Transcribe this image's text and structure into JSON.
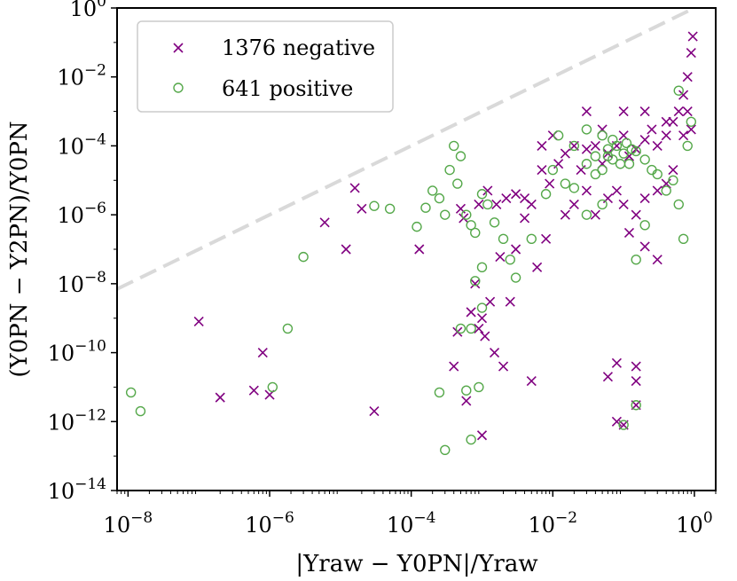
{
  "chart_data": {
    "type": "scatter",
    "x_scale": "log",
    "y_scale": "log",
    "xlim": [
      7e-09,
      2
    ],
    "ylim": [
      1e-14,
      1
    ],
    "grid": false,
    "legend_position": "top-left",
    "xlabel": "|Υraw − Υ0PN|/Υraw",
    "ylabel": "(Υ0PN − Υ2PN)/Υ0PN",
    "x_ticks": [
      {
        "value": 1e-08,
        "base": "10",
        "exp": "−8"
      },
      {
        "value": 1e-06,
        "base": "10",
        "exp": "−6"
      },
      {
        "value": 0.0001,
        "base": "10",
        "exp": "−4"
      },
      {
        "value": 0.01,
        "base": "10",
        "exp": "−2"
      },
      {
        "value": 1,
        "base": "10",
        "exp": "0"
      }
    ],
    "y_ticks": [
      {
        "value": 1e-14,
        "base": "10",
        "exp": "−14"
      },
      {
        "value": 1e-12,
        "base": "10",
        "exp": "−12"
      },
      {
        "value": 1e-10,
        "base": "10",
        "exp": "−10"
      },
      {
        "value": 1e-08,
        "base": "10",
        "exp": "−8"
      },
      {
        "value": 1e-06,
        "base": "10",
        "exp": "−6"
      },
      {
        "value": 0.0001,
        "base": "10",
        "exp": "−4"
      },
      {
        "value": 0.01,
        "base": "10",
        "exp": "−2"
      },
      {
        "value": 1,
        "base": "10",
        "exp": "0"
      }
    ],
    "reference_line": {
      "style": "dashed",
      "color": "#d9d9d9",
      "x": [
        7e-09,
        2
      ],
      "y": [
        7e-09,
        2
      ]
    },
    "series": [
      {
        "name": "1376 negative",
        "marker": "x",
        "color": "#800080",
        "points": [
          [
            1e-07,
            8e-10
          ],
          [
            2e-07,
            5e-12
          ],
          [
            6e-07,
            8e-12
          ],
          [
            8e-07,
            1e-10
          ],
          [
            1e-06,
            6e-12
          ],
          [
            6e-06,
            6e-07
          ],
          [
            1.2e-05,
            1e-07
          ],
          [
            1.6e-05,
            6e-06
          ],
          [
            2e-05,
            1.5e-06
          ],
          [
            3e-05,
            2e-12
          ],
          [
            0.00013,
            1e-07
          ],
          [
            0.0004,
            4e-11
          ],
          [
            0.00045,
            4e-10
          ],
          [
            0.0005,
            1.5e-06
          ],
          [
            0.00055,
            8e-07
          ],
          [
            0.0006,
            4e-12
          ],
          [
            0.0007,
            1.5e-09
          ],
          [
            0.0008,
            1e-08
          ],
          [
            0.0009,
            5e-10
          ],
          [
            0.001,
            1e-09
          ],
          [
            0.0011,
            3e-10
          ],
          [
            0.0013,
            3e-09
          ],
          [
            0.0015,
            1e-10
          ],
          [
            0.0018,
            6e-08
          ],
          [
            0.002,
            4e-11
          ],
          [
            0.0025,
            3e-09
          ],
          [
            0.003,
            1e-07
          ],
          [
            0.004,
            8e-07
          ],
          [
            0.005,
            1.5e-11
          ],
          [
            0.006,
            3e-08
          ],
          [
            0.008,
            2e-07
          ],
          [
            0.001,
            4e-13
          ],
          [
            0.0009,
            2e-06
          ],
          [
            0.0012,
            5e-06
          ],
          [
            0.0016,
            2e-06
          ],
          [
            0.0022,
            3e-06
          ],
          [
            0.003,
            4e-06
          ],
          [
            0.004,
            3e-06
          ],
          [
            0.005,
            2e-06
          ],
          [
            0.007,
            2e-05
          ],
          [
            0.009,
            8e-06
          ],
          [
            0.012,
            3e-05
          ],
          [
            0.015,
            6e-05
          ],
          [
            0.02,
            0.0001
          ],
          [
            0.025,
            2e-05
          ],
          [
            0.03,
            8e-05
          ],
          [
            0.04,
            0.0001
          ],
          [
            0.05,
            3e-05
          ],
          [
            0.06,
            6e-05
          ],
          [
            0.08,
            0.0001
          ],
          [
            0.1,
            0.0002
          ],
          [
            0.12,
            5e-05
          ],
          [
            0.15,
            8e-05
          ],
          [
            0.2,
            0.00015
          ],
          [
            0.25,
            0.0003
          ],
          [
            0.3,
            0.0001
          ],
          [
            0.4,
            0.0002
          ],
          [
            0.5,
            0.0005
          ],
          [
            0.6,
            0.001
          ],
          [
            0.7,
            0.003
          ],
          [
            0.8,
            0.01
          ],
          [
            0.9,
            0.05
          ],
          [
            0.95,
            0.15
          ],
          [
            0.015,
            1e-06
          ],
          [
            0.02,
            2e-06
          ],
          [
            0.03,
            5e-06
          ],
          [
            0.04,
            1e-06
          ],
          [
            0.06,
            3e-06
          ],
          [
            0.08,
            5e-06
          ],
          [
            0.1,
            2e-06
          ],
          [
            0.15,
            1e-06
          ],
          [
            0.2,
            3e-06
          ],
          [
            0.3,
            5e-06
          ],
          [
            0.4,
            8e-06
          ],
          [
            0.5,
            2e-05
          ],
          [
            0.06,
            2e-11
          ],
          [
            0.08,
            5e-11
          ],
          [
            0.15,
            4e-11
          ],
          [
            0.15,
            1.5e-11
          ],
          [
            0.15,
            3e-12
          ],
          [
            0.1,
            8e-13
          ],
          [
            0.08,
            1e-12
          ],
          [
            0.3,
            5e-08
          ],
          [
            0.2,
            1.2e-07
          ],
          [
            0.12,
            3e-07
          ],
          [
            0.007,
            0.0001
          ],
          [
            0.01,
            0.0002
          ],
          [
            0.03,
            0.001
          ],
          [
            0.05,
            0.0003
          ],
          [
            0.1,
            0.001
          ],
          [
            0.2,
            0.001
          ],
          [
            0.4,
            0.0005
          ],
          [
            0.7,
            0.0002
          ],
          [
            0.9,
            0.0003
          ],
          [
            0.8,
            0.001
          ]
        ]
      },
      {
        "name": "641 positive",
        "marker": "o",
        "color": "#55a84a",
        "points": [
          [
            1.1e-08,
            7e-12
          ],
          [
            1.5e-08,
            2e-12
          ],
          [
            1.1e-06,
            1e-11
          ],
          [
            1.8e-06,
            5e-10
          ],
          [
            3e-06,
            6e-08
          ],
          [
            3e-05,
            1.8e-06
          ],
          [
            5e-05,
            1.5e-06
          ],
          [
            0.00012,
            4.5e-07
          ],
          [
            0.00016,
            1.6e-06
          ],
          [
            0.0002,
            5e-06
          ],
          [
            0.00025,
            3e-06
          ],
          [
            0.0003,
            1e-06
          ],
          [
            0.00035,
            2e-05
          ],
          [
            0.0004,
            0.0001
          ],
          [
            0.00045,
            8e-06
          ],
          [
            0.0005,
            5e-05
          ],
          [
            0.0006,
            1e-06
          ],
          [
            0.0007,
            5e-07
          ],
          [
            0.0008,
            3e-07
          ],
          [
            0.001,
            4e-06
          ],
          [
            0.0012,
            2e-06
          ],
          [
            0.0015,
            6e-07
          ],
          [
            0.002,
            2e-07
          ],
          [
            0.0025,
            5e-08
          ],
          [
            0.003,
            1.5e-08
          ],
          [
            0.00025,
            7e-12
          ],
          [
            0.0003,
            1.5e-13
          ],
          [
            0.0006,
            8e-12
          ],
          [
            0.0007,
            3e-13
          ],
          [
            0.0009,
            1e-11
          ],
          [
            0.0007,
            5e-10
          ],
          [
            0.001,
            2e-09
          ],
          [
            0.0005,
            5e-10
          ],
          [
            0.0008,
            1.2e-08
          ],
          [
            0.001,
            3e-08
          ],
          [
            0.005,
            2e-07
          ],
          [
            0.008,
            4e-06
          ],
          [
            0.01,
            2e-05
          ],
          [
            0.015,
            8e-06
          ],
          [
            0.02,
            6e-06
          ],
          [
            0.03,
            3e-05
          ],
          [
            0.04,
            5e-05
          ],
          [
            0.05,
            2e-05
          ],
          [
            0.06,
            8e-05
          ],
          [
            0.07,
            4e-05
          ],
          [
            0.08,
            0.0001
          ],
          [
            0.1,
            6e-05
          ],
          [
            0.12,
            3e-05
          ],
          [
            0.15,
            7e-05
          ],
          [
            0.2,
            4e-05
          ],
          [
            0.25,
            2e-05
          ],
          [
            0.3,
            1.5e-05
          ],
          [
            0.4,
            5e-06
          ],
          [
            0.5,
            1e-05
          ],
          [
            0.6,
            2e-06
          ],
          [
            0.7,
            2e-07
          ],
          [
            0.8,
            0.0001
          ],
          [
            0.9,
            0.0005
          ],
          [
            0.6,
            0.004
          ],
          [
            0.1,
            8e-13
          ],
          [
            0.15,
            3e-12
          ],
          [
            0.15,
            5e-08
          ],
          [
            0.2,
            5e-07
          ],
          [
            0.05,
            2e-06
          ],
          [
            0.03,
            1e-06
          ],
          [
            0.012,
            0.0002
          ],
          [
            0.02,
            0.0001
          ],
          [
            0.03,
            0.0003
          ],
          [
            0.05,
            0.0002
          ],
          [
            0.04,
            1.5e-05
          ],
          [
            0.07,
            0.00015
          ],
          [
            0.09,
            3e-05
          ],
          [
            0.11,
            0.00012
          ],
          [
            0.13,
            8e-05
          ],
          [
            0.06,
            5e-05
          ]
        ]
      }
    ]
  }
}
